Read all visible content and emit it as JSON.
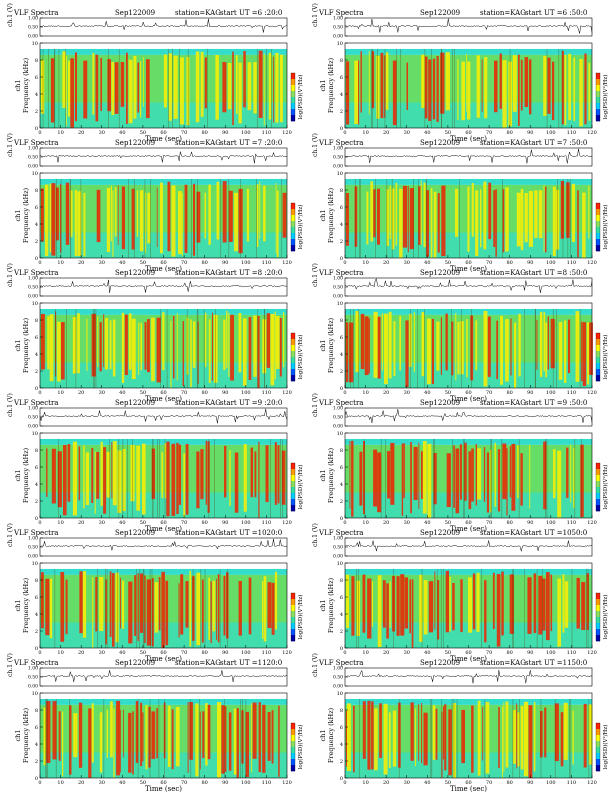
{
  "chart_data": [
    {
      "type": "heatmap",
      "title": "VLF Spectra",
      "date": "Sep122009",
      "station": "station=KAG",
      "start": "start  UT =6 :20:0",
      "trace_label": "ch.1 (V)",
      "ylabel": "Frequency (kHz)",
      "xlabel": "Time  (sec)",
      "colorbar_label": "log(PSD)(V²/Hz)",
      "channel_label": "ch1",
      "xlim": [
        0,
        120
      ],
      "ylim": [
        0,
        10
      ],
      "xticks": [
        0,
        10,
        20,
        30,
        40,
        50,
        60,
        70,
        80,
        90,
        100,
        110,
        120
      ],
      "yticks": [
        0,
        2,
        4,
        6,
        8,
        10
      ],
      "trace_yticks": [
        "0.00",
        "0.50",
        "1.00"
      ]
    },
    {
      "type": "heatmap",
      "title": "VLF Spectra",
      "date": "Sep122009",
      "station": "station=KAG",
      "start": "start  UT =6 :50:0",
      "trace_label": "ch.1 (V)",
      "ylabel": "Frequency (kHz)",
      "xlabel": "Time  (sec)",
      "colorbar_label": "log(PSD)(V²/Hz)",
      "channel_label": "ch1",
      "xlim": [
        0,
        120
      ],
      "ylim": [
        0,
        10
      ],
      "xticks": [
        0,
        10,
        20,
        30,
        40,
        50,
        60,
        70,
        80,
        90,
        100,
        110,
        120
      ],
      "yticks": [
        0,
        2,
        4,
        6,
        8,
        10
      ],
      "trace_yticks": [
        "0.00",
        "0.50",
        "1.00"
      ]
    },
    {
      "type": "heatmap",
      "title": "VLF Spectra",
      "date": "Sep122009",
      "station": "station=KAG",
      "start": "start  UT =7 :20:0",
      "trace_label": "ch.1 (V)",
      "ylabel": "Frequency (kHz)",
      "xlabel": "Time  (sec)",
      "colorbar_label": "log(PSD)(V²/Hz)",
      "channel_label": "ch1",
      "xlim": [
        0,
        120
      ],
      "ylim": [
        0,
        10
      ],
      "xticks": [
        0,
        10,
        20,
        30,
        40,
        50,
        60,
        70,
        80,
        90,
        100,
        110,
        120
      ],
      "yticks": [
        0,
        2,
        4,
        6,
        8,
        10
      ],
      "trace_yticks": [
        "0.00",
        "0.50",
        "1.00"
      ]
    },
    {
      "type": "heatmap",
      "title": "VLF Spectra",
      "date": "Sep122009",
      "station": "station=KAG",
      "start": "start  UT =7 :50:0",
      "trace_label": "ch.1 (V)",
      "ylabel": "Frequency (kHz)",
      "xlabel": "Time  (sec)",
      "colorbar_label": "log(PSD)(V²/Hz)",
      "channel_label": "ch1",
      "xlim": [
        0,
        120
      ],
      "ylim": [
        0,
        10
      ],
      "xticks": [
        0,
        10,
        20,
        30,
        40,
        50,
        60,
        70,
        80,
        90,
        100,
        110,
        120
      ],
      "yticks": [
        0,
        2,
        4,
        6,
        8,
        10
      ],
      "trace_yticks": [
        "0.00",
        "0.50",
        "1.00"
      ]
    },
    {
      "type": "heatmap",
      "title": "VLF Spectra",
      "date": "Sep122009",
      "station": "station=KAG",
      "start": "start  UT =8 :20:0",
      "trace_label": "ch.1 (V)",
      "ylabel": "Frequency (kHz)",
      "xlabel": "Time  (sec)",
      "colorbar_label": "log(PSD)(V²/Hz)",
      "channel_label": "ch1",
      "xlim": [
        0,
        120
      ],
      "ylim": [
        0,
        10
      ],
      "xticks": [
        0,
        10,
        20,
        30,
        40,
        50,
        60,
        70,
        80,
        90,
        100,
        110,
        120
      ],
      "yticks": [
        0,
        2,
        4,
        6,
        8,
        10
      ],
      "trace_yticks": [
        "0.00",
        "0.50",
        "1.00"
      ]
    },
    {
      "type": "heatmap",
      "title": "VLF Spectra",
      "date": "Sep122009",
      "station": "station=KAG",
      "start": "start  UT =8 :50:0",
      "trace_label": "ch.1 (V)",
      "ylabel": "Frequency (kHz)",
      "xlabel": "Time  (sec)",
      "colorbar_label": "log(PSD)(V²/Hz)",
      "channel_label": "ch1",
      "xlim": [
        0,
        120
      ],
      "ylim": [
        0,
        10
      ],
      "xticks": [
        0,
        10,
        20,
        30,
        40,
        50,
        60,
        70,
        80,
        90,
        100,
        110,
        120
      ],
      "yticks": [
        0,
        2,
        4,
        6,
        8,
        10
      ],
      "trace_yticks": [
        "0.00",
        "0.50",
        "1.00"
      ]
    },
    {
      "type": "heatmap",
      "title": "VLF Spectra",
      "date": "Sep122009",
      "station": "station=KAG",
      "start": "start  UT =9 :20:0",
      "trace_label": "ch.1 (V)",
      "ylabel": "Frequency (kHz)",
      "xlabel": "Time  (sec)",
      "colorbar_label": "log(PSD)(V²/Hz)",
      "channel_label": "ch1",
      "xlim": [
        0,
        120
      ],
      "ylim": [
        0,
        10
      ],
      "xticks": [
        0,
        10,
        20,
        30,
        40,
        50,
        60,
        70,
        80,
        90,
        100,
        110,
        120
      ],
      "yticks": [
        0,
        2,
        4,
        6,
        8,
        10
      ],
      "trace_yticks": [
        "0.00",
        "0.50",
        "1.00"
      ]
    },
    {
      "type": "heatmap",
      "title": "VLF Spectra",
      "date": "Sep122009",
      "station": "station=KAG",
      "start": "start  UT =9 :50:0",
      "trace_label": "ch.1 (V)",
      "ylabel": "Frequency (kHz)",
      "xlabel": "Time  (sec)",
      "colorbar_label": "log(PSD)(V²/Hz)",
      "channel_label": "ch1",
      "xlim": [
        0,
        120
      ],
      "ylim": [
        0,
        10
      ],
      "xticks": [
        0,
        10,
        20,
        30,
        40,
        50,
        60,
        70,
        80,
        90,
        100,
        110,
        120
      ],
      "yticks": [
        0,
        2,
        4,
        6,
        8,
        10
      ],
      "trace_yticks": [
        "0.00",
        "0.50",
        "1.00"
      ]
    },
    {
      "type": "heatmap",
      "title": "VLF Spectra",
      "date": "Sep122009",
      "station": "station=KAG",
      "start": "start  UT =1020:0",
      "trace_label": "ch.1 (V)",
      "ylabel": "Frequency (kHz)",
      "xlabel": "Time  (sec)",
      "colorbar_label": "log(PSD)(V²/Hz)",
      "channel_label": "ch1",
      "xlim": [
        0,
        120
      ],
      "ylim": [
        0,
        10
      ],
      "xticks": [
        0,
        10,
        20,
        30,
        40,
        50,
        60,
        70,
        80,
        90,
        100,
        110,
        120
      ],
      "yticks": [
        0,
        2,
        4,
        6,
        8,
        10
      ],
      "trace_yticks": [
        "0.00",
        "0.50",
        "1.00"
      ]
    },
    {
      "type": "heatmap",
      "title": "VLF Spectra",
      "date": "Sep122009",
      "station": "station=KAG",
      "start": "start  UT =1050:0",
      "trace_label": "ch.1 (V)",
      "ylabel": "Frequency (kHz)",
      "xlabel": "Time  (sec)",
      "colorbar_label": "log(PSD)(V²/Hz)",
      "channel_label": "ch1",
      "xlim": [
        0,
        120
      ],
      "ylim": [
        0,
        10
      ],
      "xticks": [
        0,
        10,
        20,
        30,
        40,
        50,
        60,
        70,
        80,
        90,
        100,
        110,
        120
      ],
      "yticks": [
        0,
        2,
        4,
        6,
        8,
        10
      ],
      "trace_yticks": [
        "0.00",
        "0.50",
        "1.00"
      ]
    },
    {
      "type": "heatmap",
      "title": "VLF Spectra",
      "date": "Sep122009",
      "station": "station=KAG",
      "start": "start  UT =1120:0",
      "trace_label": "ch.1 (V)",
      "ylabel": "Frequency (kHz)",
      "xlabel": "Time  (sec)",
      "colorbar_label": "log(PSD)(V²/Hz)",
      "channel_label": "ch1",
      "xlim": [
        0,
        120
      ],
      "ylim": [
        0,
        10
      ],
      "xticks": [
        0,
        10,
        20,
        30,
        40,
        50,
        60,
        70,
        80,
        90,
        100,
        110,
        120
      ],
      "yticks": [
        0,
        2,
        4,
        6,
        8,
        10
      ],
      "trace_yticks": [
        "0.00",
        "0.50",
        "1.00"
      ]
    },
    {
      "type": "heatmap",
      "title": "VLF Spectra",
      "date": "Sep122009",
      "station": "station=KAG",
      "start": "start  UT =1150:0",
      "trace_label": "ch.1 (V)",
      "ylabel": "Frequency (kHz)",
      "xlabel": "Time  (sec)",
      "colorbar_label": "log(PSD)(V²/Hz)",
      "channel_label": "ch1",
      "xlim": [
        0,
        120
      ],
      "ylim": [
        0,
        10
      ],
      "xticks": [
        0,
        10,
        20,
        30,
        40,
        50,
        60,
        70,
        80,
        90,
        100,
        110,
        120
      ],
      "yticks": [
        0,
        2,
        4,
        6,
        8,
        10
      ],
      "trace_yticks": [
        "0.00",
        "0.50",
        "1.00"
      ]
    }
  ],
  "colormap": [
    "#0000aa",
    "#0055ff",
    "#00ccff",
    "#33e0a0",
    "#88e060",
    "#ffff00",
    "#ff9900",
    "#ff2200"
  ],
  "background_colors": {
    "cyan": "#33ddcc",
    "green": "#66dd66",
    "yellow": "#ffee00",
    "red": "#ee2200"
  }
}
